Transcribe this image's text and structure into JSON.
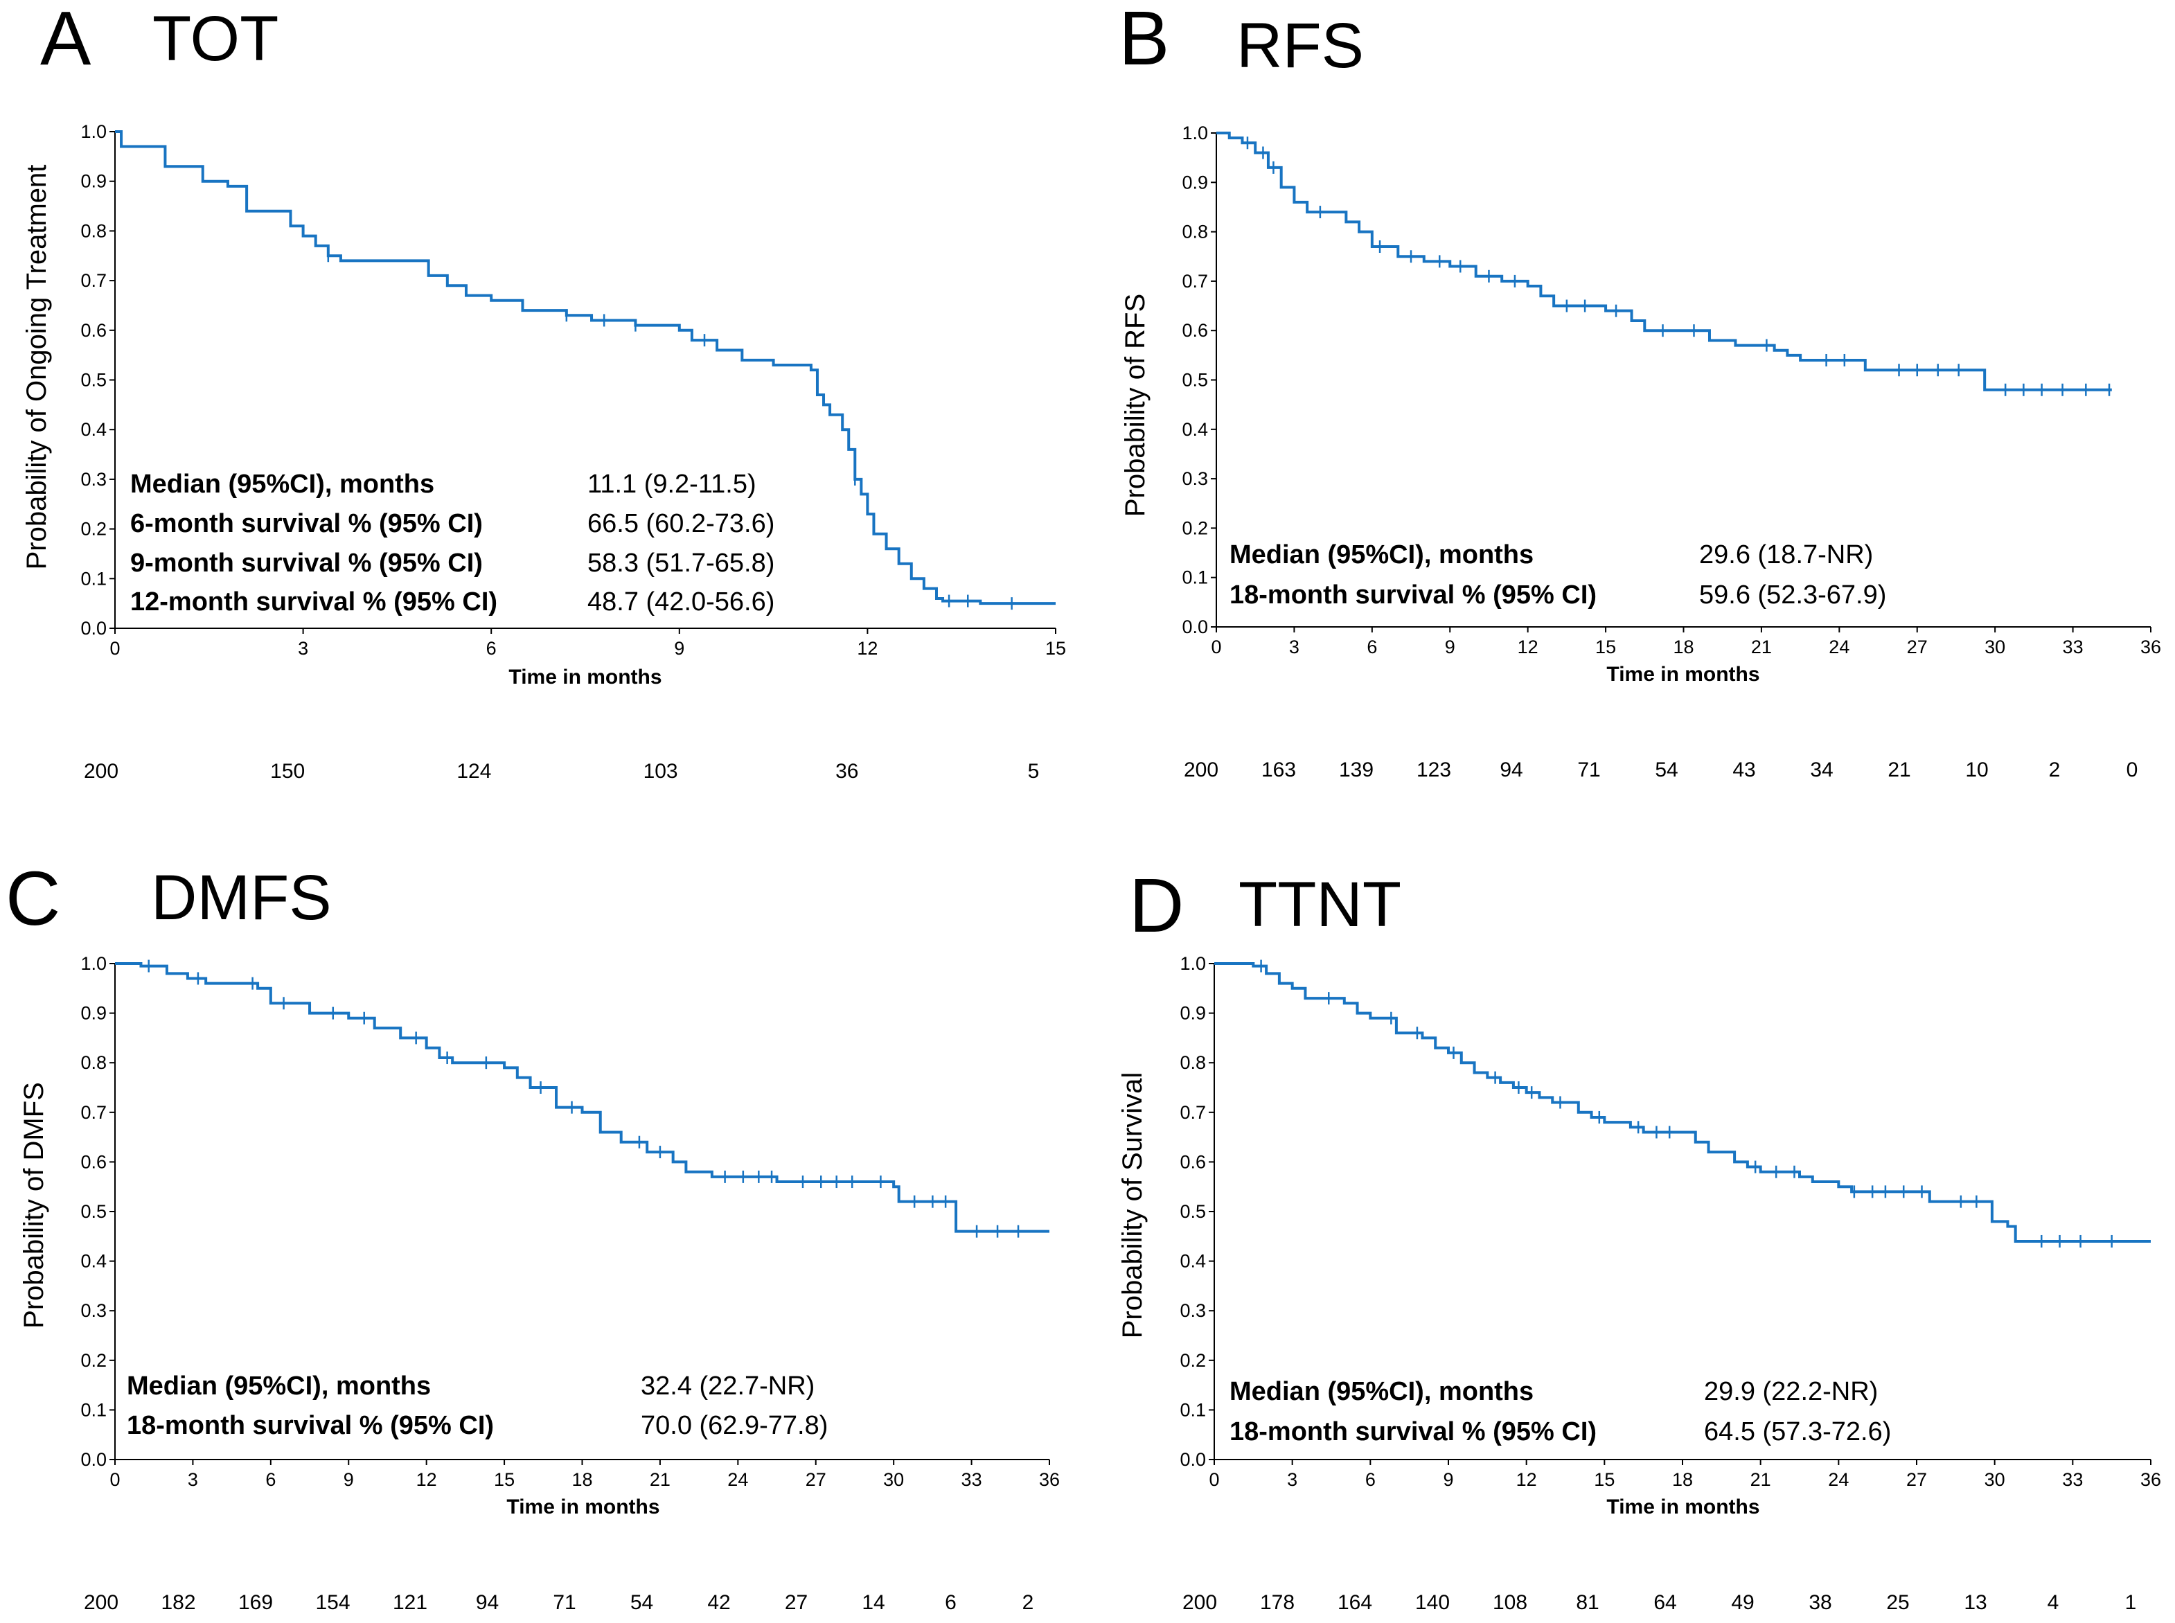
{
  "figure": {
    "panels": [
      {
        "letter": "A",
        "title": "TOT",
        "ylabel": "Probability of Ongoing Treatment",
        "xlabel": "Time in months",
        "stats": [
          {
            "label": "Median (95%CI), months",
            "value": "11.1 (9.2-11.5)"
          },
          {
            "label": "6-month survival % (95% CI)",
            "value": "66.5 (60.2-73.6)"
          },
          {
            "label": "9-month survival  % (95% CI)",
            "value": "58.3 (51.7-65.8)"
          },
          {
            "label": "12-month survival % (95% CI)",
            "value": "48.7 (42.0-56.6)"
          }
        ],
        "risk_table": {
          "times": [
            0,
            3,
            6,
            9,
            12,
            15
          ],
          "labels": [
            "200",
            "150",
            "124",
            "103",
            "36",
            "5"
          ]
        }
      },
      {
        "letter": "B",
        "title": "RFS",
        "ylabel": "Probability of RFS",
        "xlabel": "Time in months",
        "stats": [
          {
            "label": "Median (95%CI), months",
            "value": "29.6 (18.7-NR)"
          },
          {
            "label": "18-month survival % (95% CI)",
            "value": "59.6 (52.3-67.9)"
          }
        ],
        "risk_table": {
          "times": [
            0,
            3,
            6,
            9,
            12,
            15,
            18,
            21,
            24,
            27,
            30,
            33,
            36
          ],
          "labels": [
            "200",
            "163",
            "139",
            "123",
            "94",
            "71",
            "54",
            "43",
            "34",
            "21",
            "10",
            "2",
            "0"
          ]
        }
      },
      {
        "letter": "C",
        "title": "DMFS",
        "ylabel": "Probability of DMFS",
        "xlabel": "Time in months",
        "stats": [
          {
            "label": "Median (95%CI), months",
            "value": "32.4 (22.7-NR)"
          },
          {
            "label": "18-month survival % (95% CI)",
            "value": "70.0 (62.9-77.8)"
          }
        ],
        "risk_table": {
          "times": [
            0,
            3,
            6,
            9,
            12,
            15,
            18,
            21,
            24,
            27,
            30,
            33,
            36
          ],
          "labels": [
            "200",
            "182",
            "169",
            "154",
            "121",
            "94",
            "71",
            "54",
            "42",
            "27",
            "14",
            "6",
            "2"
          ]
        }
      },
      {
        "letter": "D",
        "title": "TTNT",
        "ylabel": "Probability of Survival",
        "xlabel": "Time in months",
        "stats": [
          {
            "label": "Median (95%CI), months",
            "value": "29.9 (22.2-NR)"
          },
          {
            "label": "18-month survival % (95% CI)",
            "value": "64.5 (57.3-72.6)"
          }
        ],
        "risk_table": {
          "times": [
            0,
            3,
            6,
            9,
            12,
            15,
            18,
            21,
            24,
            27,
            30,
            33,
            36
          ],
          "labels": [
            "200",
            "178",
            "164",
            "140",
            "108",
            "81",
            "64",
            "49",
            "38",
            "25",
            "13",
            "4",
            "1"
          ]
        }
      }
    ]
  },
  "chart_data": [
    {
      "type": "line",
      "subtype": "kaplan-meier",
      "title": "TOT",
      "xlabel": "Time in months",
      "ylabel": "Probability of Ongoing Treatment",
      "xlim": [
        0,
        15
      ],
      "ylim": [
        0,
        1
      ],
      "xticks": [
        0,
        3,
        6,
        9,
        12,
        15
      ],
      "yticks": [
        0.0,
        0.1,
        0.2,
        0.3,
        0.4,
        0.5,
        0.6,
        0.7,
        0.8,
        0.9,
        1.0
      ],
      "color": "#1874c2",
      "steps": [
        [
          0,
          1.0
        ],
        [
          0.1,
          0.97
        ],
        [
          0.8,
          0.93
        ],
        [
          1.4,
          0.9
        ],
        [
          1.8,
          0.89
        ],
        [
          2.1,
          0.84
        ],
        [
          2.8,
          0.81
        ],
        [
          3.0,
          0.79
        ],
        [
          3.2,
          0.77
        ],
        [
          3.4,
          0.75
        ],
        [
          3.6,
          0.74
        ],
        [
          5.0,
          0.71
        ],
        [
          5.3,
          0.69
        ],
        [
          5.6,
          0.67
        ],
        [
          6.0,
          0.66
        ],
        [
          6.5,
          0.64
        ],
        [
          7.2,
          0.63
        ],
        [
          7.6,
          0.62
        ],
        [
          8.3,
          0.61
        ],
        [
          9.0,
          0.6
        ],
        [
          9.2,
          0.58
        ],
        [
          9.6,
          0.56
        ],
        [
          10.0,
          0.54
        ],
        [
          10.5,
          0.53
        ],
        [
          11.1,
          0.52
        ],
        [
          11.2,
          0.47
        ],
        [
          11.3,
          0.45
        ],
        [
          11.4,
          0.43
        ],
        [
          11.6,
          0.4
        ],
        [
          11.7,
          0.36
        ],
        [
          11.8,
          0.3
        ],
        [
          11.9,
          0.27
        ],
        [
          12.0,
          0.23
        ],
        [
          12.1,
          0.19
        ],
        [
          12.3,
          0.16
        ],
        [
          12.5,
          0.13
        ],
        [
          12.7,
          0.1
        ],
        [
          12.9,
          0.08
        ],
        [
          13.1,
          0.06
        ],
        [
          13.2,
          0.055
        ],
        [
          13.8,
          0.05
        ],
        [
          15,
          0.05
        ]
      ],
      "censor_times": [
        3.4,
        7.2,
        7.8,
        8.3,
        9.4,
        11.8,
        13.3,
        13.6,
        14.3
      ],
      "risk_times": [
        0,
        3,
        6,
        9,
        12,
        15
      ],
      "at_risk": [
        200,
        150,
        124,
        103,
        36,
        5
      ],
      "annotations": {
        "median_months": "11.1 (9.2-11.5)",
        "6_month": "66.5 (60.2-73.6)",
        "9_month": "58.3 (51.7-65.8)",
        "12_month": "48.7 (42.0-56.6)"
      }
    },
    {
      "type": "line",
      "subtype": "kaplan-meier",
      "title": "RFS",
      "xlabel": "Time in months",
      "ylabel": "Probability of RFS",
      "xlim": [
        0,
        36
      ],
      "ylim": [
        0,
        1
      ],
      "xticks": [
        0,
        3,
        6,
        9,
        12,
        15,
        18,
        21,
        24,
        27,
        30,
        33,
        36
      ],
      "yticks": [
        0.0,
        0.1,
        0.2,
        0.3,
        0.4,
        0.5,
        0.6,
        0.7,
        0.8,
        0.9,
        1.0
      ],
      "color": "#1874c2",
      "steps": [
        [
          0,
          1.0
        ],
        [
          0.5,
          0.99
        ],
        [
          1.0,
          0.98
        ],
        [
          1.5,
          0.96
        ],
        [
          2.0,
          0.93
        ],
        [
          2.5,
          0.89
        ],
        [
          3.0,
          0.86
        ],
        [
          3.5,
          0.84
        ],
        [
          5.0,
          0.82
        ],
        [
          5.5,
          0.8
        ],
        [
          6.0,
          0.77
        ],
        [
          7.0,
          0.75
        ],
        [
          8.0,
          0.74
        ],
        [
          9.0,
          0.73
        ],
        [
          10.0,
          0.71
        ],
        [
          11.0,
          0.7
        ],
        [
          12.0,
          0.69
        ],
        [
          12.5,
          0.67
        ],
        [
          13.0,
          0.65
        ],
        [
          15.0,
          0.64
        ],
        [
          16.0,
          0.62
        ],
        [
          16.5,
          0.6
        ],
        [
          19.0,
          0.58
        ],
        [
          20.0,
          0.57
        ],
        [
          21.5,
          0.56
        ],
        [
          22.0,
          0.55
        ],
        [
          22.5,
          0.54
        ],
        [
          25.0,
          0.52
        ],
        [
          29.5,
          0.52
        ],
        [
          29.6,
          0.48
        ],
        [
          34.5,
          0.48
        ]
      ],
      "censor_times": [
        1.2,
        1.8,
        2.2,
        4.0,
        6.3,
        7.5,
        8.6,
        9.4,
        10.5,
        11.5,
        13.5,
        14.2,
        15.4,
        17.2,
        18.4,
        21.2,
        23.5,
        24.2,
        26.3,
        27.0,
        27.8,
        28.6,
        30.4,
        31.1,
        31.8,
        32.6,
        33.5,
        34.4
      ],
      "risk_times": [
        0,
        3,
        6,
        9,
        12,
        15,
        18,
        21,
        24,
        27,
        30,
        33,
        36
      ],
      "at_risk": [
        200,
        163,
        139,
        123,
        94,
        71,
        54,
        43,
        34,
        21,
        10,
        2,
        0
      ],
      "annotations": {
        "median_months": "29.6 (18.7-NR)",
        "18_month": "59.6 (52.3-67.9)"
      }
    },
    {
      "type": "line",
      "subtype": "kaplan-meier",
      "title": "DMFS",
      "xlabel": "Time in months",
      "ylabel": "Probability of DMFS",
      "xlim": [
        0,
        36
      ],
      "ylim": [
        0,
        1
      ],
      "xticks": [
        0,
        3,
        6,
        9,
        12,
        15,
        18,
        21,
        24,
        27,
        30,
        33,
        36
      ],
      "yticks": [
        0.0,
        0.1,
        0.2,
        0.3,
        0.4,
        0.5,
        0.6,
        0.7,
        0.8,
        0.9,
        1.0
      ],
      "color": "#1874c2",
      "steps": [
        [
          0,
          1.0
        ],
        [
          1.0,
          0.995
        ],
        [
          2.0,
          0.98
        ],
        [
          2.8,
          0.97
        ],
        [
          3.5,
          0.96
        ],
        [
          5.5,
          0.95
        ],
        [
          6.0,
          0.92
        ],
        [
          7.5,
          0.9
        ],
        [
          9.0,
          0.89
        ],
        [
          10.0,
          0.87
        ],
        [
          11.0,
          0.85
        ],
        [
          12.0,
          0.83
        ],
        [
          12.5,
          0.81
        ],
        [
          13.0,
          0.8
        ],
        [
          15.0,
          0.79
        ],
        [
          15.5,
          0.77
        ],
        [
          16.0,
          0.75
        ],
        [
          17.0,
          0.71
        ],
        [
          18.0,
          0.7
        ],
        [
          18.7,
          0.66
        ],
        [
          19.5,
          0.64
        ],
        [
          20.5,
          0.62
        ],
        [
          21.5,
          0.6
        ],
        [
          22.0,
          0.58
        ],
        [
          23.0,
          0.57
        ],
        [
          25.5,
          0.56
        ],
        [
          30.0,
          0.55
        ],
        [
          30.2,
          0.52
        ],
        [
          32.4,
          0.46
        ],
        [
          36,
          0.46
        ]
      ],
      "censor_times": [
        1.3,
        3.2,
        5.3,
        6.5,
        8.4,
        9.6,
        11.6,
        12.8,
        14.3,
        16.4,
        17.6,
        20.2,
        21.0,
        23.5,
        24.2,
        24.8,
        25.3,
        26.5,
        27.2,
        27.8,
        28.4,
        29.5,
        30.8,
        31.5,
        32.0,
        33.2,
        34.0,
        34.8
      ],
      "risk_times": [
        0,
        3,
        6,
        9,
        12,
        15,
        18,
        21,
        24,
        27,
        30,
        33,
        36
      ],
      "at_risk": [
        200,
        182,
        169,
        154,
        121,
        94,
        71,
        54,
        42,
        27,
        14,
        6,
        2
      ],
      "annotations": {
        "median_months": "32.4 (22.7-NR)",
        "18_month": "70.0 (62.9-77.8)"
      }
    },
    {
      "type": "line",
      "subtype": "kaplan-meier",
      "title": "TTNT",
      "xlabel": "Time in months",
      "ylabel": "Probability of Survival",
      "xlim": [
        0,
        36
      ],
      "ylim": [
        0,
        1
      ],
      "xticks": [
        0,
        3,
        6,
        9,
        12,
        15,
        18,
        21,
        24,
        27,
        30,
        33,
        36
      ],
      "yticks": [
        0.0,
        0.1,
        0.2,
        0.3,
        0.4,
        0.5,
        0.6,
        0.7,
        0.8,
        0.9,
        1.0
      ],
      "color": "#1874c2",
      "steps": [
        [
          0,
          1.0
        ],
        [
          1.5,
          0.995
        ],
        [
          2.0,
          0.98
        ],
        [
          2.5,
          0.96
        ],
        [
          3.0,
          0.95
        ],
        [
          3.5,
          0.93
        ],
        [
          5.0,
          0.92
        ],
        [
          5.5,
          0.9
        ],
        [
          6.0,
          0.89
        ],
        [
          7.0,
          0.86
        ],
        [
          8.0,
          0.85
        ],
        [
          8.5,
          0.83
        ],
        [
          9.0,
          0.82
        ],
        [
          9.5,
          0.8
        ],
        [
          10.0,
          0.78
        ],
        [
          10.5,
          0.77
        ],
        [
          11.0,
          0.76
        ],
        [
          11.5,
          0.75
        ],
        [
          12.0,
          0.74
        ],
        [
          12.5,
          0.73
        ],
        [
          13.0,
          0.72
        ],
        [
          14.0,
          0.7
        ],
        [
          14.5,
          0.69
        ],
        [
          15.0,
          0.68
        ],
        [
          16.0,
          0.67
        ],
        [
          16.5,
          0.66
        ],
        [
          18.0,
          0.66
        ],
        [
          18.5,
          0.64
        ],
        [
          19.0,
          0.62
        ],
        [
          20.0,
          0.6
        ],
        [
          20.5,
          0.59
        ],
        [
          21.0,
          0.58
        ],
        [
          22.5,
          0.57
        ],
        [
          23.0,
          0.56
        ],
        [
          24.0,
          0.55
        ],
        [
          24.5,
          0.54
        ],
        [
          27.0,
          0.54
        ],
        [
          27.5,
          0.52
        ],
        [
          29.5,
          0.52
        ],
        [
          29.9,
          0.48
        ],
        [
          30.5,
          0.47
        ],
        [
          30.8,
          0.44
        ],
        [
          36,
          0.44
        ]
      ],
      "censor_times": [
        1.8,
        4.4,
        6.8,
        7.8,
        9.2,
        10.8,
        11.7,
        12.2,
        13.3,
        14.8,
        16.3,
        17.0,
        17.5,
        20.8,
        21.6,
        22.3,
        24.6,
        25.3,
        25.8,
        26.5,
        27.2,
        28.7,
        29.3,
        31.8,
        32.5,
        33.3,
        34.5
      ],
      "risk_times": [
        0,
        3,
        6,
        9,
        12,
        15,
        18,
        21,
        24,
        27,
        30,
        33,
        36
      ],
      "at_risk": [
        200,
        178,
        164,
        140,
        108,
        81,
        64,
        49,
        38,
        25,
        13,
        4,
        1
      ],
      "annotations": {
        "median_months": "29.9 (22.2-NR)",
        "18_month": "64.5 (57.3-72.6)"
      }
    }
  ]
}
